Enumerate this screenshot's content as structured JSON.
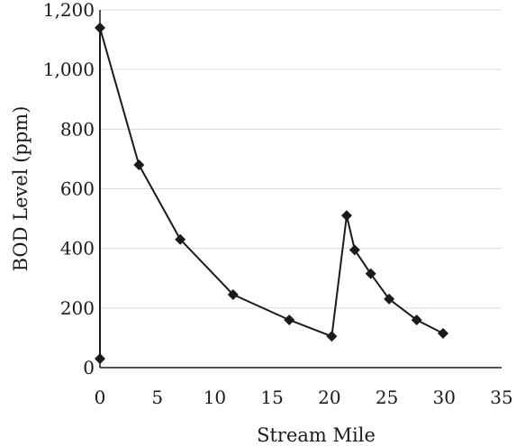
{
  "chart_data": {
    "type": "line",
    "title": "",
    "xlabel": "Stream Mile",
    "ylabel": "BOD Level (ppm)",
    "xlim": [
      0,
      35
    ],
    "ylim": [
      0,
      1200
    ],
    "x_ticks": [
      0,
      5,
      10,
      15,
      20,
      25,
      30,
      35
    ],
    "x_tick_labels": [
      "0",
      "5",
      "10",
      "15",
      "20",
      "25",
      "30",
      "35"
    ],
    "y_ticks": [
      0,
      200,
      400,
      600,
      800,
      1000,
      1200
    ],
    "y_tick_labels": [
      "0",
      "200",
      "400",
      "600",
      "800",
      "1,000",
      "1,200"
    ],
    "grid": "horizontal",
    "marker": "diamond",
    "series": [
      {
        "x": [
          0,
          0,
          3.4,
          7,
          11.6,
          16.5,
          20.2,
          21.5,
          22.2,
          23.6,
          25.2,
          27.6,
          29.9
        ],
        "y": [
          30,
          1140,
          680,
          430,
          245,
          160,
          105,
          510,
          395,
          315,
          230,
          160,
          115
        ]
      }
    ]
  }
}
